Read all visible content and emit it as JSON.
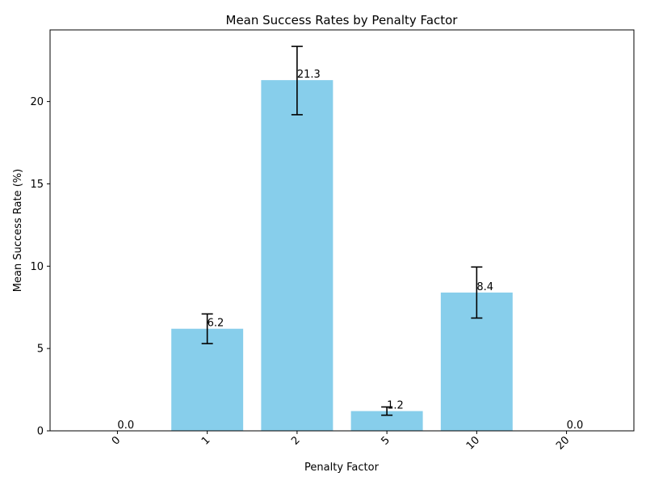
{
  "chart_data": {
    "type": "bar",
    "title": "Mean Success Rates by Penalty Factor",
    "xlabel": "Penalty Factor",
    "ylabel": "Mean Success Rate (%)",
    "categories": [
      "0",
      "1",
      "2",
      "5",
      "10",
      "20"
    ],
    "values": [
      0.0,
      6.2,
      21.3,
      1.2,
      8.4,
      0.0
    ],
    "value_labels": [
      "0.0",
      "6.2",
      "21.3",
      "1.2",
      "8.4",
      "0.0"
    ],
    "error_low": [
      0.0,
      5.3,
      19.2,
      0.95,
      6.85,
      0.0
    ],
    "error_high": [
      0.0,
      7.1,
      23.35,
      1.45,
      9.95,
      0.0
    ],
    "has_error": [
      false,
      true,
      true,
      true,
      true,
      false
    ],
    "ylim": [
      0,
      24.35
    ],
    "yticks": [
      0,
      5,
      10,
      15,
      20
    ],
    "ytick_labels": [
      "0",
      "5",
      "10",
      "15",
      "20"
    ],
    "xtick_rotation": 45,
    "grid": false,
    "bar_color": "#87ceeb",
    "error_color": "#000000"
  }
}
